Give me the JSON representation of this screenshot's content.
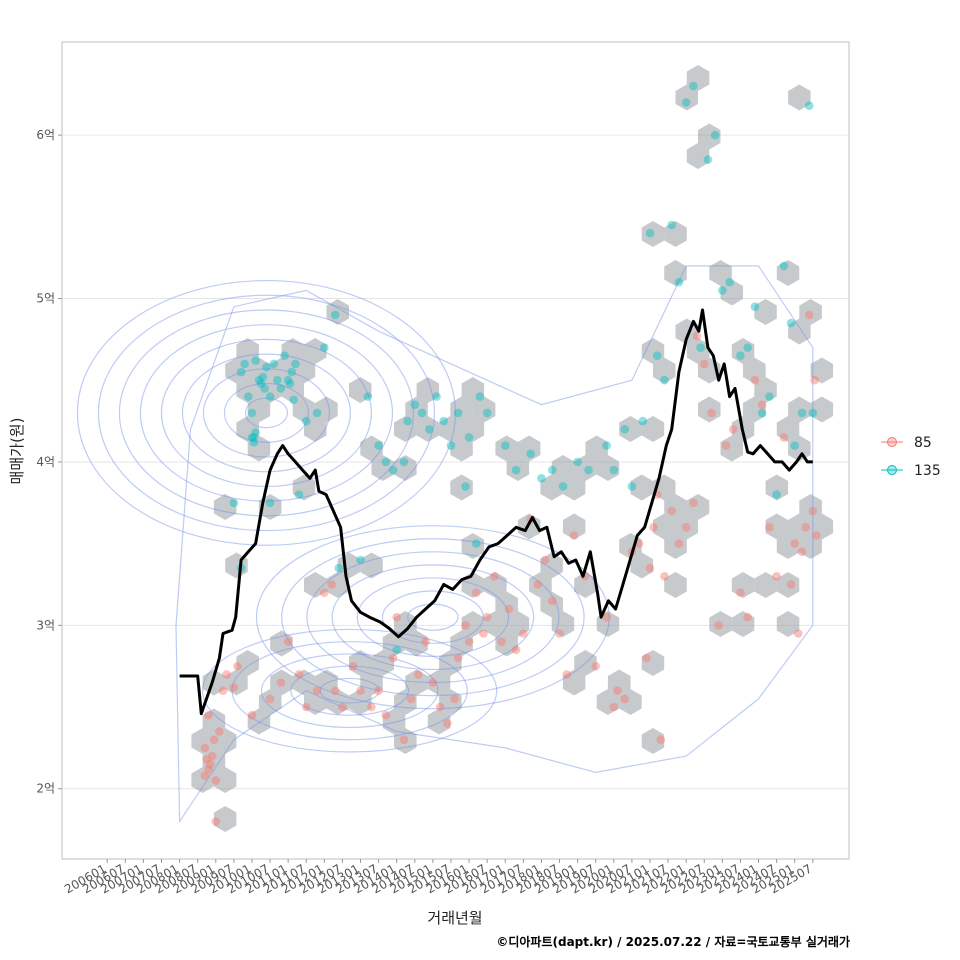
{
  "chart_data": {
    "type": "scatter",
    "title": "",
    "xlabel": "거래년월",
    "ylabel": "매매가(원)",
    "caption": "©디아파트(dapt.kr) / 2025.07.22 / 자료=국토교통부 실거래가",
    "x_tick_labels": [
      "200601",
      "200607",
      "200701",
      "200707",
      "200801",
      "200807",
      "200901",
      "200907",
      "201001",
      "201007",
      "201101",
      "201107",
      "201201",
      "201207",
      "201301",
      "201307",
      "201401",
      "201407",
      "201501",
      "201507",
      "201601",
      "201607",
      "201701",
      "201707",
      "201801",
      "201807",
      "201901",
      "201907",
      "202001",
      "202007",
      "202101",
      "202107",
      "202201",
      "202207",
      "202301",
      "202307",
      "202401",
      "202407",
      "202501",
      "202507"
    ],
    "y_ticks": [
      {
        "value": 2,
        "label": "2억"
      },
      {
        "value": 3,
        "label": "3억"
      },
      {
        "value": 4,
        "label": "4억"
      },
      {
        "value": 5,
        "label": "5억"
      },
      {
        "value": 6,
        "label": "6억"
      }
    ],
    "x_range": [
      2004.75,
      2026.5
    ],
    "ylim": [
      1.57,
      6.57
    ],
    "grid": true,
    "legend_position": "right",
    "colors": {
      "s85": "#F8766D",
      "s135": "#00BFC4",
      "trend": "#000000",
      "hex": "#8f959b",
      "contour": "#6f8fe8"
    },
    "series": [
      {
        "name": "85",
        "points": [
          [
            2008.7,
            2.25
          ],
          [
            2008.75,
            2.18
          ],
          [
            2008.8,
            2.12
          ],
          [
            2008.85,
            2.15
          ],
          [
            2008.9,
            2.2
          ],
          [
            2008.7,
            2.08
          ],
          [
            2008.95,
            2.3
          ],
          [
            2009.0,
            2.05
          ],
          [
            2009.1,
            2.35
          ],
          [
            2008.8,
            2.45
          ],
          [
            2009.2,
            2.6
          ],
          [
            2009.3,
            2.7
          ],
          [
            2009.5,
            2.62
          ],
          [
            2009.6,
            2.75
          ],
          [
            2009.0,
            1.8
          ],
          [
            2010.0,
            2.45
          ],
          [
            2010.5,
            2.55
          ],
          [
            2010.8,
            2.65
          ],
          [
            2011.0,
            2.9
          ],
          [
            2011.3,
            2.7
          ],
          [
            2011.5,
            2.5
          ],
          [
            2011.8,
            2.6
          ],
          [
            2012.0,
            3.2
          ],
          [
            2012.2,
            3.25
          ],
          [
            2012.3,
            2.6
          ],
          [
            2012.5,
            2.5
          ],
          [
            2012.8,
            2.75
          ],
          [
            2013.0,
            2.6
          ],
          [
            2013.3,
            2.5
          ],
          [
            2013.5,
            2.6
          ],
          [
            2013.7,
            2.45
          ],
          [
            2013.9,
            2.8
          ],
          [
            2014.0,
            3.05
          ],
          [
            2014.2,
            2.3
          ],
          [
            2014.4,
            2.55
          ],
          [
            2014.6,
            2.7
          ],
          [
            2014.8,
            2.9
          ],
          [
            2015.0,
            2.65
          ],
          [
            2015.2,
            2.5
          ],
          [
            2015.4,
            2.4
          ],
          [
            2015.6,
            2.55
          ],
          [
            2015.7,
            2.8
          ],
          [
            2015.9,
            3.0
          ],
          [
            2016.0,
            2.9
          ],
          [
            2016.2,
            3.2
          ],
          [
            2016.4,
            2.95
          ],
          [
            2016.5,
            3.05
          ],
          [
            2016.7,
            3.3
          ],
          [
            2016.9,
            2.9
          ],
          [
            2017.1,
            3.1
          ],
          [
            2017.3,
            2.85
          ],
          [
            2017.5,
            2.95
          ],
          [
            2017.7,
            3.65
          ],
          [
            2017.9,
            3.25
          ],
          [
            2018.1,
            3.4
          ],
          [
            2018.3,
            3.15
          ],
          [
            2018.5,
            2.95
          ],
          [
            2018.7,
            2.7
          ],
          [
            2018.9,
            3.55
          ],
          [
            2019.2,
            3.3
          ],
          [
            2019.5,
            2.75
          ],
          [
            2019.8,
            3.05
          ],
          [
            2020.0,
            2.5
          ],
          [
            2020.1,
            2.6
          ],
          [
            2020.3,
            2.55
          ],
          [
            2020.5,
            3.45
          ],
          [
            2020.7,
            3.5
          ],
          [
            2020.9,
            2.8
          ],
          [
            2021.0,
            3.35
          ],
          [
            2021.1,
            3.6
          ],
          [
            2021.2,
            3.8
          ],
          [
            2021.3,
            2.3
          ],
          [
            2021.4,
            3.3
          ],
          [
            2021.6,
            3.7
          ],
          [
            2021.8,
            3.5
          ],
          [
            2022.0,
            3.6
          ],
          [
            2022.2,
            3.75
          ],
          [
            2022.3,
            4.77
          ],
          [
            2022.5,
            4.6
          ],
          [
            2022.7,
            4.3
          ],
          [
            2022.9,
            3.0
          ],
          [
            2023.1,
            4.1
          ],
          [
            2023.3,
            4.2
          ],
          [
            2023.5,
            3.2
          ],
          [
            2023.7,
            3.05
          ],
          [
            2023.9,
            4.5
          ],
          [
            2024.1,
            4.35
          ],
          [
            2024.3,
            3.6
          ],
          [
            2024.5,
            3.3
          ],
          [
            2024.7,
            4.15
          ],
          [
            2024.9,
            3.25
          ],
          [
            2025.0,
            3.5
          ],
          [
            2025.1,
            2.95
          ],
          [
            2025.2,
            3.45
          ],
          [
            2025.3,
            3.6
          ],
          [
            2025.4,
            4.9
          ],
          [
            2025.5,
            3.7
          ],
          [
            2025.55,
            4.5
          ],
          [
            2025.6,
            3.55
          ]
        ]
      },
      {
        "name": "135",
        "points": [
          [
            2009.7,
            4.55
          ],
          [
            2009.8,
            4.6
          ],
          [
            2009.9,
            4.4
          ],
          [
            2010.0,
            4.3
          ],
          [
            2010.1,
            4.62
          ],
          [
            2010.2,
            4.5
          ],
          [
            2010.25,
            4.48
          ],
          [
            2010.3,
            4.52
          ],
          [
            2010.35,
            4.45
          ],
          [
            2010.4,
            4.58
          ],
          [
            2010.5,
            4.4
          ],
          [
            2010.6,
            4.6
          ],
          [
            2010.7,
            4.5
          ],
          [
            2010.8,
            4.45
          ],
          [
            2010.9,
            4.65
          ],
          [
            2011.0,
            4.5
          ],
          [
            2011.05,
            4.48
          ],
          [
            2011.1,
            4.55
          ],
          [
            2011.15,
            4.38
          ],
          [
            2011.2,
            4.6
          ],
          [
            2010.0,
            4.15
          ],
          [
            2010.05,
            4.12
          ],
          [
            2010.1,
            4.18
          ],
          [
            2010.05,
            4.15
          ],
          [
            2009.5,
            3.75
          ],
          [
            2010.5,
            3.75
          ],
          [
            2011.3,
            3.8
          ],
          [
            2009.7,
            3.35
          ],
          [
            2011.5,
            4.25
          ],
          [
            2011.8,
            4.3
          ],
          [
            2012.0,
            4.7
          ],
          [
            2012.3,
            4.9
          ],
          [
            2013.2,
            4.4
          ],
          [
            2013.5,
            4.1
          ],
          [
            2013.7,
            4.0
          ],
          [
            2013.9,
            3.95
          ],
          [
            2014.2,
            4.0
          ],
          [
            2014.3,
            4.25
          ],
          [
            2014.5,
            4.35
          ],
          [
            2014.7,
            4.3
          ],
          [
            2014.9,
            4.2
          ],
          [
            2015.1,
            4.4
          ],
          [
            2015.3,
            4.25
          ],
          [
            2015.5,
            4.1
          ],
          [
            2015.7,
            4.3
          ],
          [
            2015.9,
            3.85
          ],
          [
            2016.0,
            4.15
          ],
          [
            2016.3,
            4.4
          ],
          [
            2016.5,
            4.3
          ],
          [
            2017.0,
            4.1
          ],
          [
            2017.3,
            3.95
          ],
          [
            2017.7,
            4.05
          ],
          [
            2018.0,
            3.9
          ],
          [
            2018.3,
            3.95
          ],
          [
            2018.6,
            3.85
          ],
          [
            2019.0,
            4.0
          ],
          [
            2019.3,
            3.95
          ],
          [
            2019.8,
            4.1
          ],
          [
            2020.0,
            3.95
          ],
          [
            2020.3,
            4.2
          ],
          [
            2020.5,
            3.85
          ],
          [
            2020.8,
            4.25
          ],
          [
            2021.0,
            5.4
          ],
          [
            2021.2,
            4.65
          ],
          [
            2021.4,
            4.5
          ],
          [
            2021.6,
            5.45
          ],
          [
            2021.8,
            5.1
          ],
          [
            2022.0,
            6.2
          ],
          [
            2022.2,
            6.3
          ],
          [
            2022.4,
            4.7
          ],
          [
            2022.6,
            5.85
          ],
          [
            2022.8,
            6.0
          ],
          [
            2023.0,
            5.05
          ],
          [
            2023.2,
            5.1
          ],
          [
            2023.5,
            4.65
          ],
          [
            2023.7,
            4.7
          ],
          [
            2023.9,
            4.95
          ],
          [
            2024.1,
            4.3
          ],
          [
            2024.3,
            4.4
          ],
          [
            2024.5,
            3.8
          ],
          [
            2024.7,
            5.2
          ],
          [
            2024.9,
            4.85
          ],
          [
            2025.0,
            4.1
          ],
          [
            2025.2,
            4.3
          ],
          [
            2025.4,
            6.18
          ],
          [
            2025.5,
            4.3
          ],
          [
            2012.4,
            3.35
          ],
          [
            2013.0,
            3.4
          ],
          [
            2014.0,
            2.85
          ],
          [
            2016.2,
            3.5
          ]
        ]
      }
    ],
    "trend": [
      [
        2008.0,
        2.69
      ],
      [
        2008.5,
        2.69
      ],
      [
        2008.6,
        2.46
      ],
      [
        2008.9,
        2.65
      ],
      [
        2009.1,
        2.8
      ],
      [
        2009.2,
        2.95
      ],
      [
        2009.45,
        2.97
      ],
      [
        2009.55,
        3.05
      ],
      [
        2009.7,
        3.4
      ],
      [
        2009.9,
        3.45
      ],
      [
        2010.1,
        3.5
      ],
      [
        2010.3,
        3.75
      ],
      [
        2010.5,
        3.95
      ],
      [
        2010.7,
        4.05
      ],
      [
        2010.85,
        4.1
      ],
      [
        2011.0,
        4.05
      ],
      [
        2011.2,
        4.0
      ],
      [
        2011.4,
        3.95
      ],
      [
        2011.6,
        3.9
      ],
      [
        2011.75,
        3.95
      ],
      [
        2011.85,
        3.82
      ],
      [
        2012.05,
        3.8
      ],
      [
        2012.25,
        3.7
      ],
      [
        2012.45,
        3.6
      ],
      [
        2012.6,
        3.3
      ],
      [
        2012.75,
        3.15
      ],
      [
        2013.0,
        3.08
      ],
      [
        2013.25,
        3.05
      ],
      [
        2013.55,
        3.02
      ],
      [
        2013.8,
        2.98
      ],
      [
        2014.05,
        2.93
      ],
      [
        2014.3,
        2.98
      ],
      [
        2014.55,
        3.05
      ],
      [
        2014.8,
        3.1
      ],
      [
        2015.05,
        3.15
      ],
      [
        2015.3,
        3.25
      ],
      [
        2015.55,
        3.22
      ],
      [
        2015.8,
        3.28
      ],
      [
        2016.05,
        3.3
      ],
      [
        2016.3,
        3.4
      ],
      [
        2016.55,
        3.48
      ],
      [
        2016.8,
        3.5
      ],
      [
        2017.05,
        3.55
      ],
      [
        2017.3,
        3.6
      ],
      [
        2017.55,
        3.58
      ],
      [
        2017.75,
        3.66
      ],
      [
        2017.95,
        3.58
      ],
      [
        2018.15,
        3.6
      ],
      [
        2018.35,
        3.42
      ],
      [
        2018.55,
        3.45
      ],
      [
        2018.75,
        3.38
      ],
      [
        2018.95,
        3.4
      ],
      [
        2019.15,
        3.3
      ],
      [
        2019.35,
        3.45
      ],
      [
        2019.55,
        3.2
      ],
      [
        2019.65,
        3.05
      ],
      [
        2019.85,
        3.15
      ],
      [
        2020.05,
        3.1
      ],
      [
        2020.25,
        3.25
      ],
      [
        2020.45,
        3.4
      ],
      [
        2020.65,
        3.55
      ],
      [
        2020.85,
        3.6
      ],
      [
        2021.05,
        3.75
      ],
      [
        2021.25,
        3.9
      ],
      [
        2021.45,
        4.1
      ],
      [
        2021.6,
        4.2
      ],
      [
        2021.8,
        4.55
      ],
      [
        2022.0,
        4.75
      ],
      [
        2022.2,
        4.86
      ],
      [
        2022.35,
        4.8
      ],
      [
        2022.45,
        4.93
      ],
      [
        2022.6,
        4.7
      ],
      [
        2022.75,
        4.65
      ],
      [
        2022.9,
        4.5
      ],
      [
        2023.05,
        4.6
      ],
      [
        2023.2,
        4.4
      ],
      [
        2023.35,
        4.45
      ],
      [
        2023.55,
        4.2
      ],
      [
        2023.7,
        4.06
      ],
      [
        2023.85,
        4.05
      ],
      [
        2024.05,
        4.1
      ],
      [
        2024.25,
        4.05
      ],
      [
        2024.45,
        4.0
      ],
      [
        2024.65,
        4.0
      ],
      [
        2024.85,
        3.95
      ],
      [
        2025.05,
        4.0
      ],
      [
        2025.2,
        4.05
      ],
      [
        2025.35,
        4.0
      ],
      [
        2025.5,
        4.0
      ]
    ]
  }
}
